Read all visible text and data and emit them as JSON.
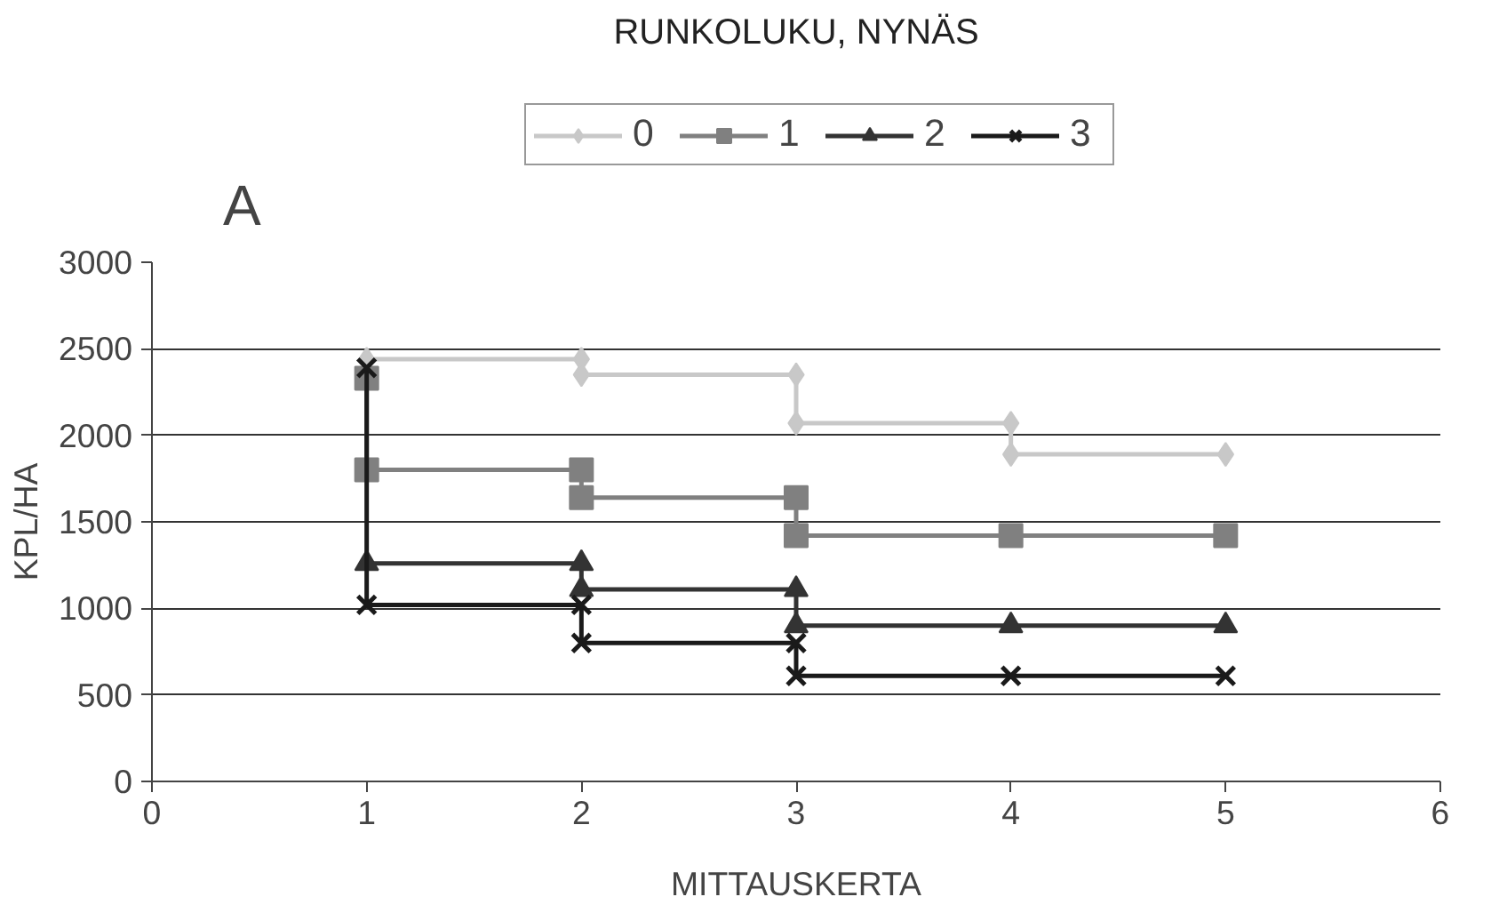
{
  "chart_data": {
    "type": "line",
    "title": "RUNKOLUKU, NYNÄS",
    "xlabel": "MITTAUSKERTA",
    "ylabel": "KPL/HA",
    "annotations": [
      "A"
    ],
    "xlim": [
      0,
      6
    ],
    "xticks": [
      0,
      1,
      2,
      3,
      4,
      5,
      6
    ],
    "ylim": [
      0,
      3000
    ],
    "yticks": [
      0,
      500,
      1000,
      1500,
      2000,
      2500,
      3000
    ],
    "grid": "y",
    "legend": "top",
    "series": [
      {
        "name": "0",
        "color": "#c8c8c8",
        "marker": "diamond",
        "x": [
          1,
          2,
          2,
          3,
          3,
          4,
          4,
          5
        ],
        "values": [
          2440,
          2440,
          2350,
          2350,
          2070,
          2070,
          1890,
          1890
        ]
      },
      {
        "name": "1",
        "color": "#808080",
        "marker": "square",
        "x": [
          1,
          1,
          2,
          2,
          3,
          3,
          4,
          5
        ],
        "values": [
          2330,
          1800,
          1800,
          1640,
          1640,
          1420,
          1420,
          1420
        ]
      },
      {
        "name": "2",
        "color": "#333333",
        "marker": "triangle",
        "x": [
          1,
          2,
          2,
          3,
          3,
          4,
          5
        ],
        "values": [
          1260,
          1260,
          1110,
          1110,
          900,
          900,
          900
        ]
      },
      {
        "name": "3",
        "color": "#1a1a1a",
        "marker": "cross",
        "x": [
          1,
          1,
          2,
          2,
          3,
          3,
          4,
          5
        ],
        "values": [
          2390,
          1020,
          1020,
          800,
          800,
          610,
          610,
          610
        ]
      }
    ]
  }
}
